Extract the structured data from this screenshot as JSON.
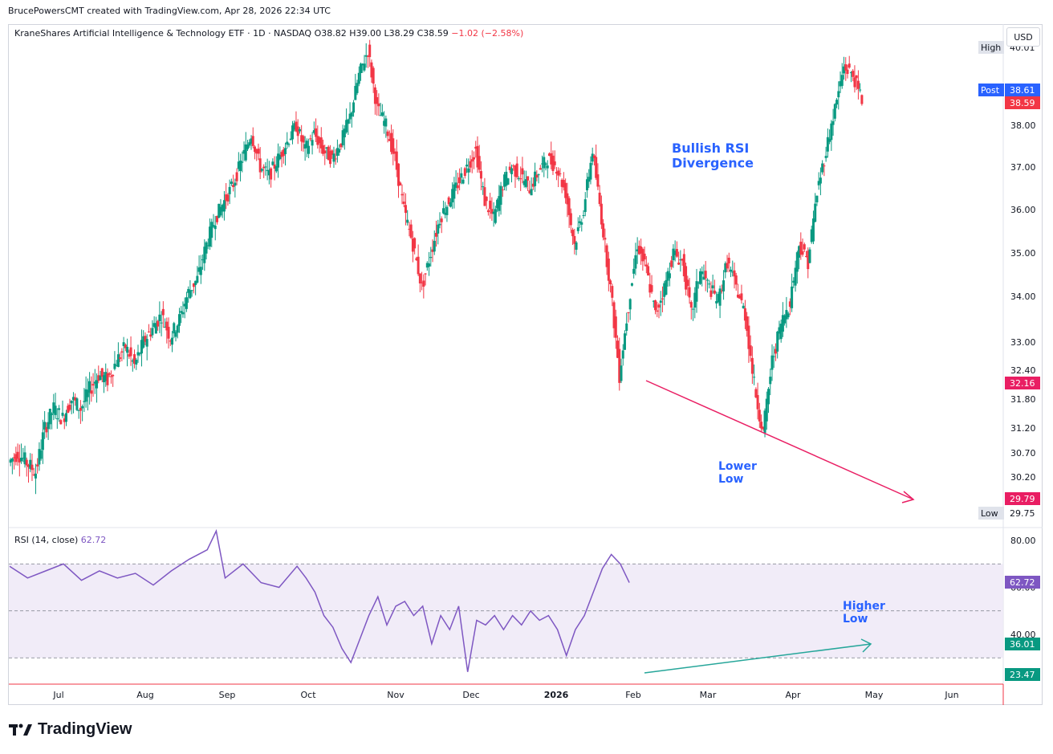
{
  "header": {
    "creator_line": "BrucePowersCMT created with TradingView.com, Apr 28, 2026 22:34 UTC"
  },
  "symbol": {
    "name_line": "KraneShares Artificial Intelligence & Technology ETF · 1D · NASDAQ",
    "open": "O38.82",
    "high": "H39.00",
    "low": "L38.29",
    "close": "C38.59",
    "change": "−1.02 (−2.58%)"
  },
  "currency_button": "USD",
  "rsi": {
    "label": "RSI (14, close)",
    "value": "62.72"
  },
  "logo_text": "TradingView",
  "colors": {
    "up": "#089981",
    "down": "#f23645",
    "rsi_line": "#7e57c2",
    "rsi_band": "#ede7f6",
    "annotation_text": "#2962ff",
    "lower_low_line": "#e91e63",
    "higher_low_line": "#26a69a"
  },
  "chart_data": {
    "type": "candlestick",
    "price_axis": {
      "ticks": [
        "38.00",
        "37.00",
        "36.00",
        "35.00",
        "34.00",
        "33.00",
        "32.40",
        "31.80",
        "31.20",
        "30.70",
        "30.20"
      ],
      "ylim": [
        29.6,
        40.2
      ]
    },
    "x_axis": {
      "labels": [
        "Jul",
        "Aug",
        "Sep",
        "Oct",
        "Nov",
        "Dec",
        "2026",
        "Feb",
        "Mar",
        "Apr",
        "May",
        "Jun"
      ]
    },
    "price_labels": [
      {
        "tag": "High",
        "value": "40.01"
      },
      {
        "tag": "Post",
        "value": "38.61"
      },
      {
        "tag": "",
        "value": "38.59"
      },
      {
        "tag": "",
        "value": "32.16"
      },
      {
        "tag": "",
        "value": "29.79"
      },
      {
        "tag": "Low",
        "value": "29.75"
      }
    ],
    "rsi_axis": {
      "ticks": [
        "80.00",
        "60.00",
        "40.00"
      ],
      "bands": [
        70,
        50,
        30
      ],
      "ylim": [
        20,
        86
      ],
      "labels": [
        "62.72",
        "36.01",
        "23.47"
      ]
    },
    "annotations": {
      "bullish": "Bullish RSI\nDivergence",
      "lower_low": "Lower\nLow",
      "higher_low": "Higher\nLow"
    },
    "price_path": [
      [
        0,
        30.5
      ],
      [
        5,
        30.7
      ],
      [
        10,
        30.5
      ],
      [
        15,
        30.3
      ],
      [
        20,
        31.2
      ],
      [
        25,
        31.6
      ],
      [
        30,
        31.4
      ],
      [
        35,
        31.8
      ],
      [
        40,
        31.6
      ],
      [
        45,
        32.0
      ],
      [
        50,
        32.3
      ],
      [
        55,
        32.2
      ],
      [
        60,
        32.6
      ],
      [
        65,
        32.9
      ],
      [
        70,
        32.5
      ],
      [
        75,
        33.0
      ],
      [
        80,
        33.3
      ],
      [
        85,
        33.6
      ],
      [
        90,
        33.1
      ],
      [
        95,
        33.5
      ],
      [
        100,
        34.1
      ],
      [
        105,
        34.4
      ],
      [
        110,
        35.2
      ],
      [
        115,
        35.8
      ],
      [
        120,
        36.2
      ],
      [
        125,
        36.6
      ],
      [
        130,
        37.2
      ],
      [
        135,
        37.8
      ],
      [
        140,
        37.0
      ],
      [
        145,
        36.8
      ],
      [
        150,
        37.2
      ],
      [
        155,
        37.6
      ],
      [
        160,
        38.0
      ],
      [
        165,
        37.4
      ],
      [
        170,
        37.8
      ],
      [
        175,
        37.4
      ],
      [
        180,
        37.2
      ],
      [
        185,
        37.6
      ],
      [
        190,
        38.2
      ],
      [
        195,
        39.2
      ],
      [
        200,
        39.8
      ],
      [
        205,
        38.4
      ],
      [
        210,
        38.0
      ],
      [
        215,
        37.2
      ],
      [
        220,
        36.0
      ],
      [
        225,
        35.2
      ],
      [
        230,
        34.2
      ],
      [
        235,
        35.0
      ],
      [
        240,
        35.8
      ],
      [
        245,
        36.2
      ],
      [
        250,
        36.6
      ],
      [
        255,
        37.0
      ],
      [
        260,
        37.4
      ],
      [
        265,
        36.2
      ],
      [
        270,
        35.8
      ],
      [
        275,
        36.6
      ],
      [
        280,
        37.0
      ],
      [
        285,
        36.8
      ],
      [
        290,
        36.5
      ],
      [
        295,
        36.9
      ],
      [
        300,
        37.2
      ],
      [
        305,
        37.0
      ],
      [
        310,
        36.4
      ],
      [
        315,
        35.2
      ],
      [
        320,
        36.0
      ],
      [
        325,
        37.4
      ],
      [
        330,
        35.8
      ],
      [
        335,
        34.2
      ],
      [
        340,
        32.3
      ],
      [
        345,
        33.8
      ],
      [
        350,
        35.2
      ],
      [
        355,
        34.6
      ],
      [
        360,
        33.6
      ],
      [
        365,
        34.2
      ],
      [
        370,
        35.0
      ],
      [
        375,
        34.8
      ],
      [
        380,
        33.6
      ],
      [
        385,
        34.6
      ],
      [
        390,
        34.2
      ],
      [
        395,
        33.9
      ],
      [
        400,
        34.8
      ],
      [
        405,
        34.2
      ],
      [
        410,
        33.6
      ],
      [
        415,
        32.1
      ],
      [
        420,
        31.1
      ],
      [
        425,
        32.6
      ],
      [
        430,
        33.4
      ],
      [
        435,
        33.9
      ],
      [
        440,
        35.2
      ],
      [
        445,
        34.8
      ],
      [
        450,
        36.4
      ],
      [
        455,
        37.4
      ],
      [
        460,
        38.4
      ],
      [
        465,
        39.4
      ],
      [
        470,
        39.2
      ],
      [
        475,
        38.6
      ]
    ],
    "rsi_path": [
      [
        0,
        69
      ],
      [
        10,
        64
      ],
      [
        20,
        67
      ],
      [
        30,
        70
      ],
      [
        40,
        63
      ],
      [
        50,
        67
      ],
      [
        60,
        64
      ],
      [
        70,
        66
      ],
      [
        80,
        61
      ],
      [
        90,
        67
      ],
      [
        100,
        72
      ],
      [
        110,
        76
      ],
      [
        115,
        84
      ],
      [
        120,
        64
      ],
      [
        130,
        70
      ],
      [
        140,
        62
      ],
      [
        150,
        60
      ],
      [
        160,
        69
      ],
      [
        165,
        64
      ],
      [
        170,
        58
      ],
      [
        175,
        48
      ],
      [
        180,
        43
      ],
      [
        185,
        34
      ],
      [
        190,
        28
      ],
      [
        195,
        38
      ],
      [
        200,
        48
      ],
      [
        205,
        56
      ],
      [
        210,
        44
      ],
      [
        215,
        52
      ],
      [
        220,
        54
      ],
      [
        225,
        48
      ],
      [
        230,
        52
      ],
      [
        235,
        36
      ],
      [
        240,
        48
      ],
      [
        245,
        42
      ],
      [
        250,
        52
      ],
      [
        255,
        24
      ],
      [
        260,
        46
      ],
      [
        265,
        44
      ],
      [
        270,
        48
      ],
      [
        275,
        42
      ],
      [
        280,
        48
      ],
      [
        285,
        44
      ],
      [
        290,
        50
      ],
      [
        295,
        46
      ],
      [
        300,
        48
      ],
      [
        305,
        42
      ],
      [
        310,
        31
      ],
      [
        315,
        42
      ],
      [
        320,
        48
      ],
      [
        325,
        58
      ],
      [
        330,
        68
      ],
      [
        335,
        74
      ],
      [
        340,
        70
      ],
      [
        345,
        62
      ]
    ]
  }
}
